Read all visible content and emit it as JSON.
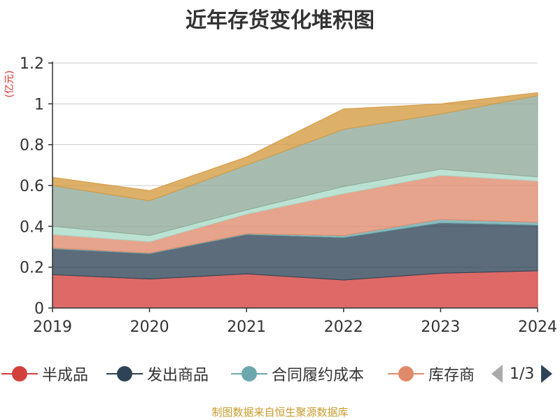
{
  "title": "近年存货变化堆积图",
  "unit_label": "(亿元)",
  "source": "制图数据来自恒生聚源数据库",
  "legend_pager": {
    "text": "1/3"
  },
  "legend_visible": [
    "半成品",
    "发出商品",
    "合同履约成本",
    "库存商"
  ],
  "colors": {
    "半成品": "#d3403c",
    "发出商品": "#2e4355",
    "合同履约成本": "#6aa8ad",
    "库存商品": "#e08a6c",
    "series5": "#a9dac8",
    "series6": "#8ea999",
    "series7": "#d49a3f"
  },
  "chart_data": {
    "type": "area",
    "stacked": true,
    "x": [
      "2019",
      "2020",
      "2021",
      "2022",
      "2023",
      "2024"
    ],
    "ylim": [
      0,
      1.2
    ],
    "yticks": [
      0,
      0.2,
      0.4,
      0.6,
      0.8,
      1,
      1.2
    ],
    "ytick_labels": [
      "0",
      "0.2",
      "0.4",
      "0.6",
      "0.8",
      "1",
      "1.2"
    ],
    "grid": true,
    "legend_position": "bottom",
    "series": [
      {
        "name": "半成品",
        "values": [
          0.163,
          0.142,
          0.167,
          0.137,
          0.17,
          0.182
        ]
      },
      {
        "name": "发出商品",
        "values": [
          0.127,
          0.124,
          0.193,
          0.208,
          0.247,
          0.224
        ]
      },
      {
        "name": "合同履约成本",
        "values": [
          0.004,
          0.003,
          0.004,
          0.01,
          0.017,
          0.014
        ]
      },
      {
        "name": "库存商品",
        "values": [
          0.066,
          0.056,
          0.096,
          0.205,
          0.216,
          0.202
        ]
      },
      {
        "values": [
          0.04,
          0.03,
          0.02,
          0.035,
          0.03,
          0.02
        ]
      },
      {
        "values": [
          0.2,
          0.17,
          0.22,
          0.28,
          0.27,
          0.398
        ]
      },
      {
        "values": [
          0.04,
          0.05,
          0.04,
          0.1,
          0.05,
          0.015
        ]
      }
    ]
  }
}
